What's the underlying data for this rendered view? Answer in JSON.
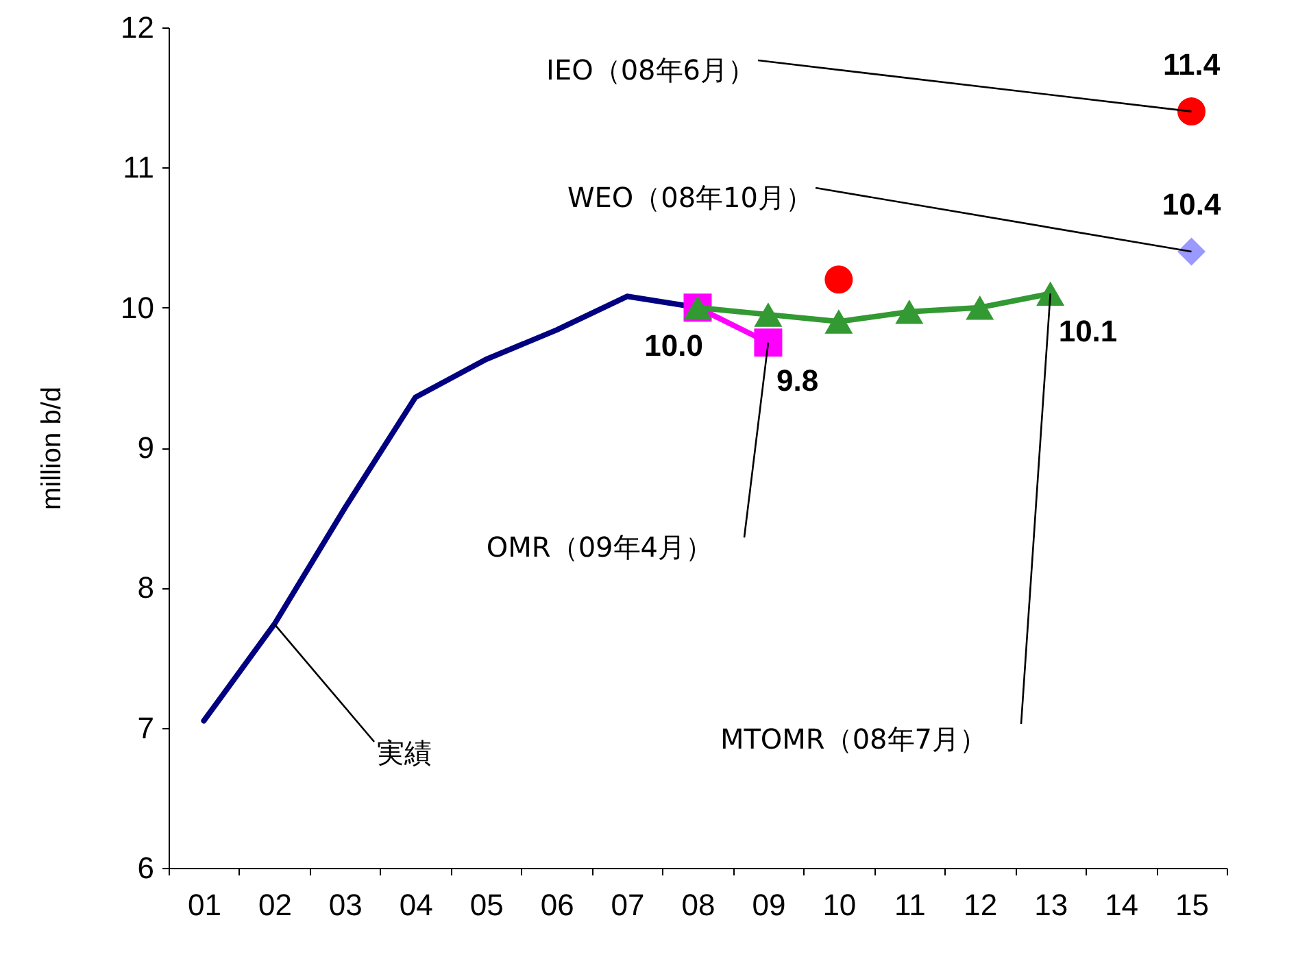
{
  "chart_data": {
    "type": "line",
    "ylabel": "million b/d",
    "categories": [
      "01",
      "02",
      "03",
      "04",
      "05",
      "06",
      "07",
      "08",
      "09",
      "10",
      "11",
      "12",
      "13",
      "14",
      "15"
    ],
    "series": [
      {
        "color": "#000080",
        "values": [
          7.05,
          7.74,
          8.57,
          9.36,
          9.63,
          9.84,
          10.08,
          10.0,
          null,
          null,
          null,
          null,
          null,
          null,
          null
        ]
      },
      {
        "color": "#ff00ff",
        "marker": "square",
        "values": [
          null,
          null,
          null,
          null,
          null,
          null,
          null,
          10.0,
          9.75,
          null,
          null,
          null,
          null,
          null,
          null
        ],
        "value_labels": [
          null,
          null,
          null,
          null,
          null,
          null,
          null,
          null,
          "9.8",
          null,
          null,
          null,
          null,
          null,
          null
        ]
      },
      {
        "color": "#339933",
        "marker": "triangle",
        "values": [
          null,
          null,
          null,
          null,
          null,
          null,
          null,
          10.0,
          9.95,
          9.9,
          9.97,
          10.0,
          10.1,
          null,
          null
        ],
        "value_labels": [
          null,
          null,
          null,
          null,
          null,
          null,
          null,
          "10.0",
          null,
          null,
          null,
          null,
          "10.1",
          null,
          null
        ]
      },
      {
        "type": "scatter",
        "color": "#ff0000",
        "marker": "circle",
        "values": [
          null,
          null,
          null,
          null,
          null,
          null,
          null,
          null,
          null,
          10.2,
          null,
          null,
          null,
          null,
          11.4
        ],
        "value_labels": [
          null,
          null,
          null,
          null,
          null,
          null,
          null,
          null,
          null,
          null,
          null,
          null,
          null,
          null,
          "11.4"
        ]
      },
      {
        "type": "scatter",
        "color": "#9999ff",
        "marker": "diamond",
        "values": [
          null,
          null,
          null,
          null,
          null,
          null,
          null,
          null,
          null,
          null,
          null,
          null,
          null,
          null,
          10.4
        ],
        "value_labels": [
          null,
          null,
          null,
          null,
          null,
          null,
          null,
          null,
          null,
          null,
          null,
          null,
          null,
          null,
          "10.4"
        ]
      }
    ],
    "ylim": [
      6,
      12
    ],
    "yticks": [
      6,
      7,
      8,
      9,
      10,
      11,
      12
    ],
    "grid": false,
    "annotations": [
      {
        "text": "IEO（08年6月）",
        "x": "15",
        "y": 11.4
      },
      {
        "text": "WEO（08年10月）",
        "x": "15",
        "y": 10.4
      },
      {
        "text": "OMR（09年4月）",
        "x": "09",
        "y": 9.75
      },
      {
        "text": "MTOMR（08年7月）",
        "x": "13",
        "y": 10.1
      },
      {
        "text": "実績",
        "x": "02",
        "y": 7.74
      }
    ]
  }
}
